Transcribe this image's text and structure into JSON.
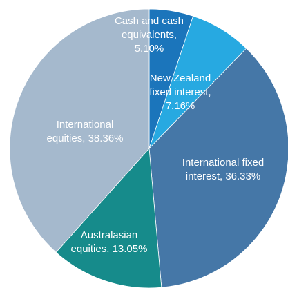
{
  "chart_data": {
    "type": "pie",
    "values": [
      5.1,
      7.16,
      36.33,
      13.05,
      38.36
    ],
    "value_labels": [
      [
        "Cash and cash",
        "equivalents,",
        "5.10%"
      ],
      [
        "New Zealand",
        "fixed interest,",
        "7.16%"
      ],
      [
        "International fixed",
        "interest, 36.33%"
      ],
      [
        "Australasian",
        "equities, 13.05%"
      ],
      [
        "International",
        "equities, 38.36%"
      ]
    ],
    "colors": [
      "#1b75bb",
      "#27a9e1",
      "#4577a7",
      "#168b8b",
      "#a5b9cd"
    ]
  }
}
